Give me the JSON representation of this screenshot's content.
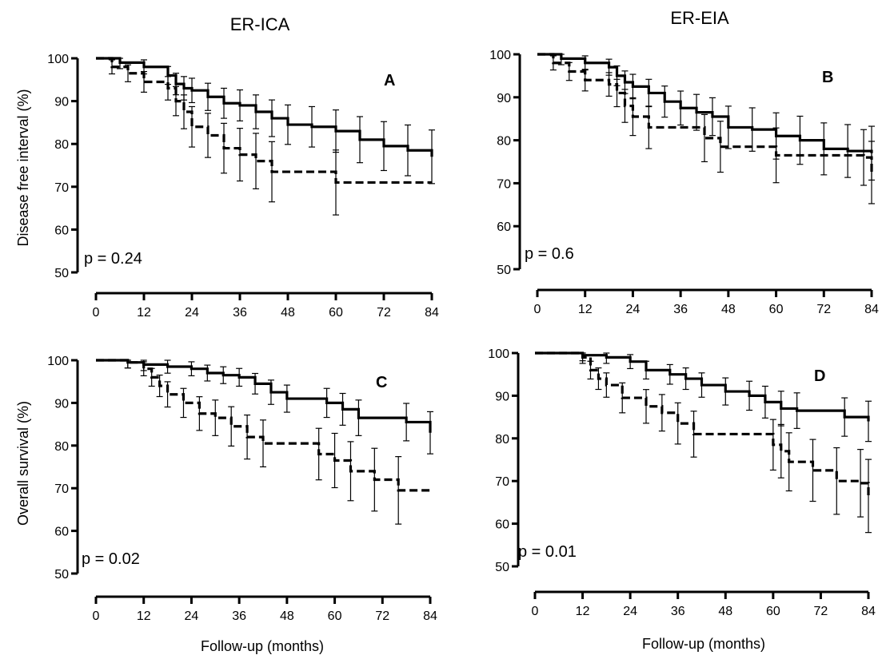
{
  "figure": {
    "column_titles": [
      "ER-ICA",
      "ER-EIA"
    ],
    "y_label_top": "Disease free interval (%)",
    "y_label_bottom": "Overall survival (%)",
    "x_label": "Follow-up (months)",
    "colors": {
      "line": "#000000",
      "background": "#ffffff"
    }
  },
  "chart_data": [
    {
      "type": "line",
      "panel": "A",
      "p_value_text": "p = 0.24",
      "ylim": [
        50,
        100
      ],
      "xlim": [
        0,
        84
      ],
      "yticks": [
        "50",
        "60",
        "70",
        "80",
        "90",
        "100"
      ],
      "xticks": [
        "0",
        "12",
        "24",
        "36",
        "48",
        "60",
        "72",
        "84"
      ],
      "series": [
        {
          "style": "solid",
          "x": [
            0,
            6,
            12,
            18,
            20,
            22,
            24,
            28,
            32,
            36,
            40,
            44,
            48,
            54,
            60,
            66,
            72,
            78,
            84
          ],
          "y": [
            100,
            99,
            98,
            96,
            94,
            93,
            92.5,
            91,
            89.5,
            89,
            87.5,
            86,
            84.5,
            84,
            83,
            81,
            79.5,
            78.5,
            77
          ]
        },
        {
          "style": "dashed",
          "x": [
            0,
            4,
            8,
            12,
            18,
            20,
            22,
            24,
            28,
            32,
            36,
            40,
            44,
            52,
            60,
            72,
            84
          ],
          "y": [
            100,
            98,
            96.5,
            94.5,
            93,
            90,
            87.5,
            84,
            82,
            79,
            77.5,
            76,
            73.5,
            73.5,
            71,
            71,
            71
          ]
        }
      ]
    },
    {
      "type": "line",
      "panel": "B",
      "p_value_text": "p = 0.6",
      "ylim": [
        50,
        100
      ],
      "xlim": [
        0,
        84
      ],
      "yticks": [
        "50",
        "60",
        "70",
        "80",
        "90",
        "100"
      ],
      "xticks": [
        "0",
        "12",
        "24",
        "36",
        "48",
        "60",
        "72",
        "84"
      ],
      "series": [
        {
          "style": "solid",
          "x": [
            0,
            6,
            12,
            18,
            20,
            22,
            24,
            28,
            32,
            36,
            40,
            44,
            48,
            54,
            60,
            66,
            72,
            78,
            84
          ],
          "y": [
            100,
            99,
            98,
            97,
            95,
            93.5,
            92.5,
            91,
            89,
            87.5,
            86.5,
            85.5,
            83,
            82.5,
            81,
            80,
            78,
            77.5,
            77
          ]
        },
        {
          "style": "dashed",
          "x": [
            0,
            4,
            8,
            12,
            18,
            20,
            22,
            24,
            28,
            36,
            42,
            46,
            52,
            60,
            72,
            82,
            84
          ],
          "y": [
            100,
            98,
            96,
            94,
            93,
            91,
            88,
            85.5,
            83,
            83,
            80.5,
            78.5,
            78.5,
            76.5,
            76.5,
            76,
            72.5
          ]
        }
      ]
    },
    {
      "type": "line",
      "panel": "C",
      "p_value_text": "p = 0.02",
      "ylim": [
        50,
        100
      ],
      "xlim": [
        0,
        84
      ],
      "yticks": [
        "50",
        "60",
        "70",
        "80",
        "90",
        "100"
      ],
      "xticks": [
        "0",
        "12",
        "24",
        "36",
        "48",
        "60",
        "72",
        "84"
      ],
      "series": [
        {
          "style": "solid",
          "x": [
            0,
            8,
            12,
            18,
            24,
            28,
            32,
            36,
            40,
            44,
            48,
            54,
            58,
            62,
            66,
            72,
            78,
            84
          ],
          "y": [
            100,
            99.5,
            99,
            98.5,
            98,
            97,
            96.5,
            96,
            94.5,
            92.5,
            91,
            91,
            90,
            88.5,
            86.5,
            86.5,
            85.5,
            83
          ]
        },
        {
          "style": "dashed",
          "x": [
            0,
            8,
            12,
            14,
            16,
            18,
            22,
            26,
            30,
            34,
            38,
            42,
            50,
            56,
            60,
            64,
            70,
            76,
            84
          ],
          "y": [
            100,
            99.5,
            98,
            96,
            94,
            92,
            90,
            87.5,
            86.5,
            84.5,
            82,
            80.5,
            80.5,
            78,
            76.5,
            74,
            72,
            69.5,
            69.5
          ]
        }
      ]
    },
    {
      "type": "line",
      "panel": "D",
      "p_value_text": "p = 0.01",
      "ylim": [
        50,
        100
      ],
      "xlim": [
        0,
        84
      ],
      "yticks": [
        "50",
        "60",
        "70",
        "80",
        "90",
        "100"
      ],
      "xticks": [
        "0",
        "12",
        "24",
        "36",
        "48",
        "60",
        "72",
        "84"
      ],
      "series": [
        {
          "style": "solid",
          "x": [
            0,
            8,
            12,
            18,
            24,
            28,
            34,
            38,
            42,
            48,
            54,
            58,
            62,
            66,
            72,
            78,
            84
          ],
          "y": [
            100,
            100,
            99.5,
            99,
            98,
            96,
            95,
            94,
            92.5,
            91,
            90,
            88.5,
            87,
            86.5,
            86.5,
            85,
            84
          ]
        },
        {
          "style": "dashed",
          "x": [
            0,
            8,
            12,
            14,
            16,
            18,
            22,
            28,
            32,
            36,
            40,
            50,
            60,
            62,
            64,
            70,
            76,
            82,
            84
          ],
          "y": [
            100,
            100,
            99,
            96,
            94,
            92.5,
            89.5,
            87.5,
            86,
            83.5,
            81,
            81,
            78.5,
            77,
            74.5,
            72.5,
            70,
            69.5,
            66.5
          ]
        }
      ]
    }
  ]
}
